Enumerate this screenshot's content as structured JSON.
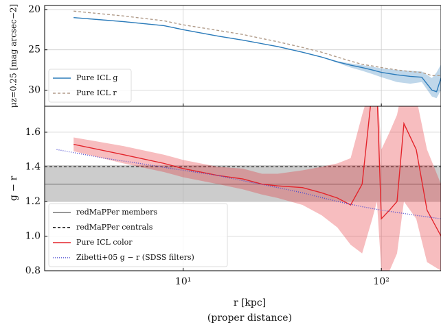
{
  "chart_data": [
    {
      "type": "line",
      "ylabel": "μz=0.25 [mag arcsec−2]",
      "xscale": "log",
      "xlim": [
        2,
        200
      ],
      "xticks": [
        10,
        100
      ],
      "ylim": [
        32,
        19.5
      ],
      "yticks": [
        20,
        25,
        30
      ],
      "grid": true,
      "legend": "lower left",
      "series": [
        {
          "name": "Pure ICL g",
          "color": "#2b7bba",
          "x": [
            2.8,
            5,
            8,
            10,
            15,
            20,
            30,
            40,
            50,
            60,
            70,
            80,
            90,
            100,
            120,
            140,
            160,
            180,
            190,
            200
          ],
          "values": [
            21.0,
            21.5,
            22.0,
            22.5,
            23.3,
            23.8,
            24.6,
            25.3,
            25.9,
            26.5,
            26.9,
            27.2,
            27.5,
            27.8,
            28.1,
            28.3,
            28.4,
            30.0,
            30.2,
            28.5
          ],
          "lower": [
            20.95,
            21.45,
            21.95,
            22.45,
            23.25,
            23.75,
            24.55,
            25.25,
            25.85,
            26.4,
            26.7,
            26.9,
            27.1,
            27.3,
            27.5,
            27.6,
            27.7,
            28.5,
            27.8,
            26.8
          ],
          "upper": [
            21.05,
            21.55,
            22.05,
            22.55,
            23.35,
            23.85,
            24.65,
            25.35,
            25.95,
            26.6,
            27.2,
            27.6,
            28.0,
            28.4,
            29.0,
            29.2,
            29.0,
            30.8,
            31.0,
            30.0
          ]
        },
        {
          "name": "Pure ICL r",
          "color": "#b09a88",
          "dash": "4,3",
          "x": [
            2.8,
            5,
            8,
            10,
            15,
            20,
            30,
            40,
            50,
            60,
            70,
            80,
            90,
            100,
            120,
            140,
            160,
            180,
            200
          ],
          "values": [
            20.2,
            20.8,
            21.4,
            21.9,
            22.6,
            23.1,
            24.0,
            24.7,
            25.3,
            25.9,
            26.4,
            26.8,
            27.0,
            27.2,
            27.5,
            27.7,
            27.8,
            28.2,
            28.2
          ]
        }
      ]
    },
    {
      "type": "line",
      "ylabel": "g − r",
      "xlabel": [
        "r [kpc]",
        "(proper distance)"
      ],
      "xscale": "log",
      "xlim": [
        2,
        200
      ],
      "xticks": [
        {
          "value": 10,
          "label": "10¹"
        },
        {
          "value": 100,
          "label": "10²"
        }
      ],
      "ylim": [
        0.8,
        1.75
      ],
      "yticks": [
        0.8,
        {
          "value": 1,
          "label": "1.0"
        },
        1.2,
        1.4,
        1.6
      ],
      "grid": true,
      "legend": "lower left",
      "hlines": [
        {
          "name": "redMaPPer members",
          "color": "#777777",
          "value": 1.3,
          "lower": 1.2,
          "upper": 1.41
        },
        {
          "name": "redMaPPer centrals",
          "color": "#000000",
          "dash": "4,3",
          "value": 1.4
        }
      ],
      "series": [
        {
          "name": "Pure ICL color",
          "color": "#e3242b",
          "x": [
            2.8,
            5,
            8,
            10,
            15,
            20,
            25,
            30,
            40,
            50,
            60,
            70,
            80,
            90,
            95,
            100,
            110,
            120,
            130,
            150,
            170,
            200
          ],
          "values": [
            1.53,
            1.47,
            1.42,
            1.39,
            1.35,
            1.33,
            1.3,
            1.29,
            1.28,
            1.25,
            1.22,
            1.18,
            1.3,
            1.85,
            1.85,
            1.1,
            1.15,
            1.2,
            1.65,
            1.5,
            1.15,
            1.0
          ],
          "lower": [
            1.49,
            1.42,
            1.37,
            1.34,
            1.3,
            1.27,
            1.24,
            1.22,
            1.18,
            1.12,
            1.05,
            0.95,
            0.9,
            1.1,
            1.2,
            0.8,
            0.8,
            0.9,
            1.2,
            1.1,
            0.85,
            0.8
          ],
          "upper": [
            1.57,
            1.52,
            1.47,
            1.44,
            1.4,
            1.39,
            1.36,
            1.36,
            1.38,
            1.4,
            1.42,
            1.45,
            1.7,
            1.9,
            1.9,
            1.5,
            1.6,
            1.7,
            1.9,
            1.8,
            1.5,
            1.3
          ]
        },
        {
          "name": "Zibetti+05 g − r (SDSS filters)",
          "color": "#4a4ad0",
          "dash": "1,2",
          "x": [
            2.3,
            4,
            6,
            10,
            15,
            20,
            30,
            40,
            60,
            80,
            100,
            150,
            200
          ],
          "values": [
            1.5,
            1.45,
            1.42,
            1.38,
            1.35,
            1.32,
            1.28,
            1.25,
            1.2,
            1.17,
            1.15,
            1.12,
            1.1
          ]
        }
      ]
    }
  ]
}
